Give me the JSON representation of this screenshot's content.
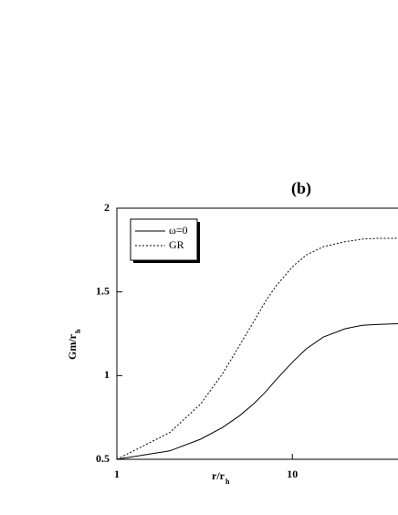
{
  "chart_data": {
    "type": "line",
    "title": "(b)",
    "xlabel": "r/r",
    "xlabel_sub": "h",
    "ylabel": "Gm/r",
    "ylabel_sub": "h",
    "x": [
      1,
      2,
      3,
      4,
      5,
      6,
      7,
      8,
      10,
      12,
      15,
      20,
      25,
      30,
      40
    ],
    "series": [
      {
        "name": "ω=0",
        "color": "#000000",
        "dash": "solid",
        "values": [
          0.5,
          0.55,
          0.62,
          0.69,
          0.76,
          0.83,
          0.9,
          0.97,
          1.08,
          1.16,
          1.23,
          1.28,
          1.3,
          1.305,
          1.31
        ]
      },
      {
        "name": "GR",
        "color": "#000000",
        "dash": "dotted",
        "values": [
          0.5,
          0.66,
          0.83,
          1.01,
          1.18,
          1.32,
          1.44,
          1.53,
          1.65,
          1.72,
          1.77,
          1.8,
          1.815,
          1.82,
          1.82
        ]
      }
    ],
    "xlim": [
      1,
      40
    ],
    "xscale": "log",
    "xticks": [
      1,
      10
    ],
    "ylim": [
      0.5,
      2
    ],
    "yticks": [
      0.5,
      1,
      1.5,
      2
    ],
    "legend": "upper left"
  }
}
